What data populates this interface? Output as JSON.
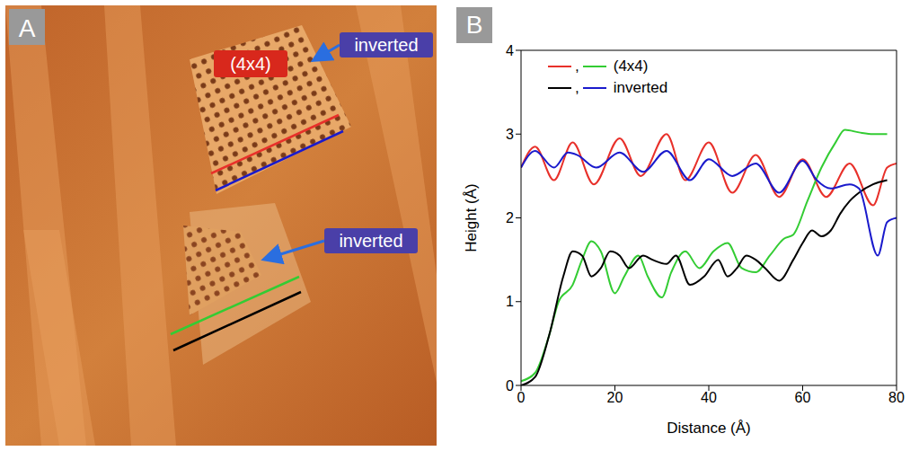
{
  "image_panel": {
    "label": "A",
    "region_label": "(4x4)",
    "arrow_labels": [
      "inverted",
      "inverted"
    ]
  },
  "chart_data": {
    "type": "line",
    "panel_label": "B",
    "x_label": "Distance (Å)",
    "y_label": "Height (Å)",
    "xlim": [
      0,
      80
    ],
    "xticks": [
      0,
      20,
      40,
      60,
      80
    ],
    "ylim": [
      0,
      4
    ],
    "yticks": [
      0,
      1,
      2,
      3,
      4
    ],
    "grid": false,
    "legend": "top-left",
    "legend_separator": ",",
    "legend_entries": [
      {
        "label": "(4x4)",
        "series": [
          0,
          1
        ]
      },
      {
        "label": "inverted",
        "series": [
          2,
          3
        ]
      }
    ],
    "series": [
      {
        "color": "#e8302a",
        "x": [
          0,
          3,
          7,
          11,
          15.5,
          21,
          25.5,
          31,
          35,
          40,
          45,
          50,
          55,
          60,
          65,
          70,
          75,
          78,
          80
        ],
        "values": [
          2.6,
          2.85,
          2.45,
          2.9,
          2.4,
          2.95,
          2.5,
          3.0,
          2.45,
          2.9,
          2.3,
          2.75,
          2.25,
          2.7,
          2.25,
          2.65,
          2.15,
          2.6,
          2.65
        ]
      },
      {
        "color": "#33cc33",
        "x": [
          0,
          3,
          6,
          8,
          11,
          13,
          15,
          17,
          20,
          22,
          25,
          27,
          30,
          32,
          35,
          38,
          41,
          44,
          47,
          50,
          53,
          56,
          58,
          61,
          64,
          67,
          69,
          72,
          75,
          78
        ],
        "values": [
          0.05,
          0.15,
          0.6,
          1.0,
          1.2,
          1.5,
          1.72,
          1.6,
          1.1,
          1.3,
          1.55,
          1.3,
          1.05,
          1.35,
          1.6,
          1.4,
          1.6,
          1.7,
          1.4,
          1.35,
          1.55,
          1.75,
          1.8,
          2.2,
          2.6,
          2.9,
          3.05,
          3.02,
          3.0,
          3.0
        ]
      },
      {
        "color": "#000000",
        "x": [
          0,
          3,
          6,
          9,
          11,
          13,
          15,
          17,
          19,
          21,
          23,
          26,
          28,
          31,
          33,
          36,
          39,
          42,
          44,
          46,
          48,
          50,
          52,
          55,
          58,
          60,
          62,
          64,
          66,
          68,
          70,
          72,
          75,
          78
        ],
        "values": [
          0,
          0.1,
          0.6,
          1.3,
          1.6,
          1.55,
          1.3,
          1.4,
          1.6,
          1.55,
          1.4,
          1.55,
          1.5,
          1.45,
          1.55,
          1.2,
          1.3,
          1.5,
          1.3,
          1.4,
          1.55,
          1.5,
          1.4,
          1.25,
          1.5,
          1.7,
          1.85,
          1.78,
          1.85,
          2.05,
          2.2,
          2.3,
          2.4,
          2.45
        ]
      },
      {
        "color": "#1a1acc",
        "x": [
          0,
          3,
          7,
          10,
          12,
          16,
          21,
          26,
          31,
          36,
          40,
          45,
          50,
          55,
          60,
          63,
          66,
          70,
          72,
          76,
          78,
          80
        ],
        "values": [
          2.6,
          2.8,
          2.6,
          2.78,
          2.75,
          2.6,
          2.78,
          2.55,
          2.8,
          2.45,
          2.7,
          2.5,
          2.65,
          2.3,
          2.68,
          2.45,
          2.35,
          2.4,
          2.35,
          1.55,
          1.95,
          2.0
        ]
      }
    ]
  }
}
